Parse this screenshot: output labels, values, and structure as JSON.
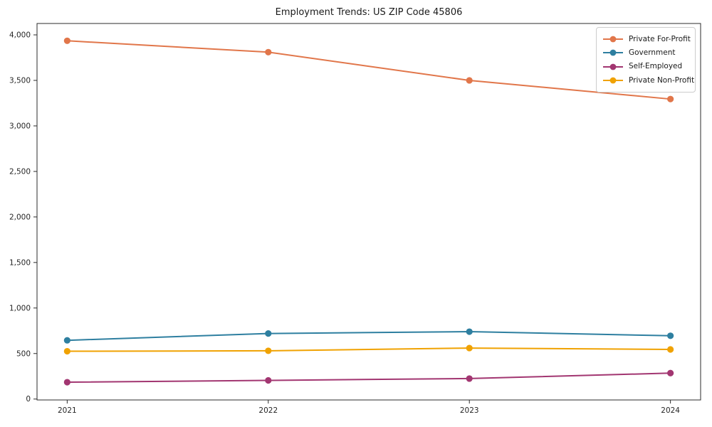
{
  "chart_data": {
    "type": "line",
    "title": "Employment Trends: US ZIP Code 45806",
    "categories": [
      "2021",
      "2022",
      "2023",
      "2024"
    ],
    "series": [
      {
        "name": "Private For-Profit",
        "color": "#e1764a",
        "values": [
          3935,
          3810,
          3500,
          3295
        ]
      },
      {
        "name": "Government",
        "color": "#2e7fa0",
        "values": [
          645,
          720,
          740,
          695
        ]
      },
      {
        "name": "Self-Employed",
        "color": "#a23671",
        "values": [
          185,
          205,
          225,
          285
        ]
      },
      {
        "name": "Private Non-Profit",
        "color": "#f0a202",
        "values": [
          525,
          530,
          560,
          545
        ]
      }
    ],
    "xlabel": "",
    "ylabel": "",
    "xlim": [
      2020.85,
      2024.15
    ],
    "ylim": [
      -10,
      4125
    ],
    "yticks": [
      0,
      500,
      1000,
      1500,
      2000,
      2500,
      3000,
      3500,
      4000
    ],
    "ytick_labels": [
      "0",
      "500",
      "1,000",
      "1,500",
      "2,000",
      "2,500",
      "3,000",
      "3,500",
      "4,000"
    ],
    "legend_position": "upper right",
    "grid": false,
    "axis_color": "#2b2b2b",
    "tick_label_color": "#262626",
    "marker": "circle",
    "marker_radius": 4.6,
    "line_width": 2
  }
}
